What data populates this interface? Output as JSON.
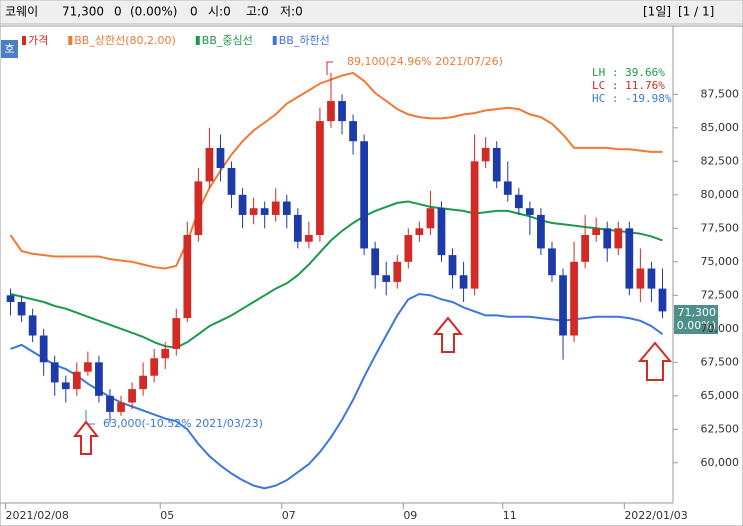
{
  "header": {
    "items": [
      "코웨이",
      "71,300",
      "0",
      "(0.00%)",
      "0",
      "시:0",
      "고:0",
      "저:0"
    ],
    "right": [
      "[1일]",
      "[1 / 1]"
    ],
    "button": "호"
  },
  "chart_data": {
    "type": "candlestick",
    "categories": [
      "2021/02/08",
      null,
      null,
      null,
      null,
      null,
      null,
      null,
      null,
      null,
      null,
      null,
      null,
      null,
      "05",
      null,
      null,
      null,
      null,
      null,
      null,
      null,
      null,
      null,
      null,
      "07",
      null,
      null,
      null,
      null,
      null,
      null,
      null,
      null,
      null,
      null,
      "09",
      null,
      null,
      null,
      null,
      null,
      null,
      null,
      null,
      "11",
      null,
      null,
      null,
      null,
      null,
      null,
      null,
      null,
      null,
      null,
      "2022/01/03",
      null,
      null,
      null
    ],
    "series": [
      {
        "name": "가격",
        "up_color": "#d22a24",
        "down_color": "#1c3aa8",
        "open": [
          72500,
          72000,
          71000,
          69500,
          67500,
          66000,
          65500,
          66800,
          67500,
          65000,
          63800,
          64500,
          65500,
          66500,
          67800,
          68500,
          70800,
          77000,
          81000,
          83500,
          82000,
          80000,
          78500,
          79000,
          78500,
          79500,
          78500,
          76500,
          77000,
          85500,
          87000,
          85500,
          84000,
          76000,
          74000,
          73500,
          75000,
          77000,
          77500,
          79000,
          75500,
          74000,
          73000,
          82500,
          83500,
          81000,
          80000,
          79000,
          78500,
          76000,
          74000,
          69500,
          75000,
          77000,
          77500,
          76000,
          77500,
          73000,
          74500,
          73000
        ],
        "high": [
          73000,
          72500,
          71500,
          70000,
          68000,
          66500,
          67500,
          68300,
          68000,
          65500,
          65000,
          66000,
          67500,
          68500,
          69000,
          71500,
          78000,
          82000,
          85000,
          84500,
          82500,
          80500,
          79800,
          79500,
          80500,
          80000,
          79000,
          78000,
          86500,
          89100,
          87500,
          86000,
          84500,
          76500,
          75000,
          75500,
          77500,
          78000,
          80300,
          79500,
          76000,
          75000,
          84500,
          84300,
          84000,
          82500,
          80500,
          79500,
          79000,
          76500,
          74500,
          76500,
          78500,
          78300,
          78000,
          78000,
          78000,
          76000,
          75000,
          74500
        ],
        "low": [
          71000,
          70500,
          69000,
          66500,
          65000,
          64500,
          65000,
          66500,
          64500,
          63000,
          63500,
          64000,
          65000,
          66000,
          67000,
          68000,
          70500,
          76500,
          80500,
          81000,
          79000,
          77500,
          77800,
          77500,
          78000,
          77500,
          76000,
          76000,
          76500,
          85000,
          84500,
          83000,
          75500,
          73000,
          72500,
          73000,
          74500,
          76500,
          77000,
          75000,
          73000,
          72000,
          72500,
          82000,
          80500,
          79500,
          78500,
          77000,
          75500,
          73500,
          67700,
          69000,
          74500,
          76500,
          75000,
          75500,
          72500,
          72000,
          72000,
          70800
        ],
        "close": [
          72000,
          71000,
          69500,
          67500,
          66000,
          65500,
          66800,
          67500,
          65000,
          63800,
          64500,
          65500,
          66500,
          67800,
          68500,
          70800,
          77000,
          81000,
          83500,
          82000,
          80000,
          78500,
          79000,
          78500,
          79500,
          78500,
          76500,
          77000,
          85500,
          87000,
          85500,
          84000,
          76000,
          74000,
          73500,
          75000,
          77000,
          77500,
          79000,
          75500,
          74000,
          73000,
          82500,
          83500,
          81000,
          80000,
          79000,
          78500,
          76000,
          74000,
          69500,
          75000,
          77000,
          77500,
          76000,
          77500,
          73000,
          74500,
          73000,
          71300
        ]
      },
      {
        "name": "BB_상한선(80,2.00)",
        "color": "#f07a35",
        "values": [
          77000,
          75800,
          75600,
          75500,
          75400,
          75400,
          75400,
          75400,
          75400,
          75200,
          75100,
          75000,
          74800,
          74600,
          74500,
          74700,
          76500,
          78800,
          80500,
          81800,
          83000,
          84000,
          84800,
          85400,
          86000,
          86800,
          87300,
          87800,
          88300,
          88600,
          88900,
          89100,
          88500,
          87600,
          87000,
          86400,
          86000,
          85800,
          85700,
          85700,
          85800,
          86000,
          86100,
          86300,
          86400,
          86500,
          86400,
          86000,
          85800,
          85300,
          84500,
          83500,
          83500,
          83500,
          83500,
          83400,
          83400,
          83300,
          83200,
          83200
        ]
      },
      {
        "name": "BB_중심선",
        "color": "#1a9a4a",
        "values": [
          72600,
          72400,
          72200,
          72000,
          71700,
          71500,
          71200,
          70900,
          70600,
          70300,
          70000,
          69700,
          69400,
          69000,
          68700,
          68600,
          69000,
          69600,
          70200,
          70600,
          71000,
          71500,
          72000,
          72500,
          73000,
          73400,
          74000,
          74800,
          75700,
          76600,
          77300,
          77900,
          78400,
          78800,
          79100,
          79400,
          79500,
          79300,
          79100,
          79000,
          78900,
          78800,
          78600,
          78700,
          78800,
          78800,
          78600,
          78400,
          78100,
          77900,
          77800,
          77700,
          77600,
          77500,
          77400,
          77300,
          77200,
          77100,
          76900,
          76600
        ]
      },
      {
        "name": "BB_하한선",
        "color": "#3b78d8",
        "values": [
          68500,
          68800,
          68300,
          67800,
          67300,
          67000,
          66500,
          65900,
          65400,
          64900,
          64500,
          64200,
          63900,
          63600,
          63300,
          63100,
          62500,
          61400,
          60500,
          59800,
          59200,
          58700,
          58300,
          58100,
          58300,
          58700,
          59300,
          59900,
          60800,
          61900,
          63200,
          64700,
          66400,
          68000,
          69500,
          71000,
          72200,
          72600,
          72500,
          72200,
          72000,
          71600,
          71300,
          71000,
          71000,
          70900,
          70900,
          70900,
          70800,
          70700,
          70600,
          70700,
          70800,
          70900,
          70900,
          70900,
          70800,
          70600,
          70200,
          69600
        ]
      }
    ],
    "ylim": [
      57000,
      92450
    ],
    "yticks": [
      {
        "value": 60000,
        "label": "60,000"
      },
      {
        "value": 62500,
        "label": "62,500"
      },
      {
        "value": 65000,
        "label": "65,000"
      },
      {
        "value": 67500,
        "label": "67,500"
      },
      {
        "value": 70000,
        "label": "70,000"
      },
      {
        "value": 72500,
        "label": "72,500"
      },
      {
        "value": 75000,
        "label": "75,000"
      },
      {
        "value": 77500,
        "label": "77,500"
      },
      {
        "value": 80000,
        "label": "80,000"
      },
      {
        "value": 82500,
        "label": "82,500"
      },
      {
        "value": 85000,
        "label": "85,000"
      },
      {
        "value": 87500,
        "label": "87,500"
      }
    ],
    "annotations": {
      "high": "89,100(24.96% 2021/07/26)",
      "low": "63,000(-10.52% 2021/03/23)",
      "lh": "LH :  39.66%",
      "lc": "LC :  11.76%",
      "hc": "HC : -19.98%",
      "price": "71,300",
      "change": "( 0.00%)"
    },
    "grid": false
  }
}
